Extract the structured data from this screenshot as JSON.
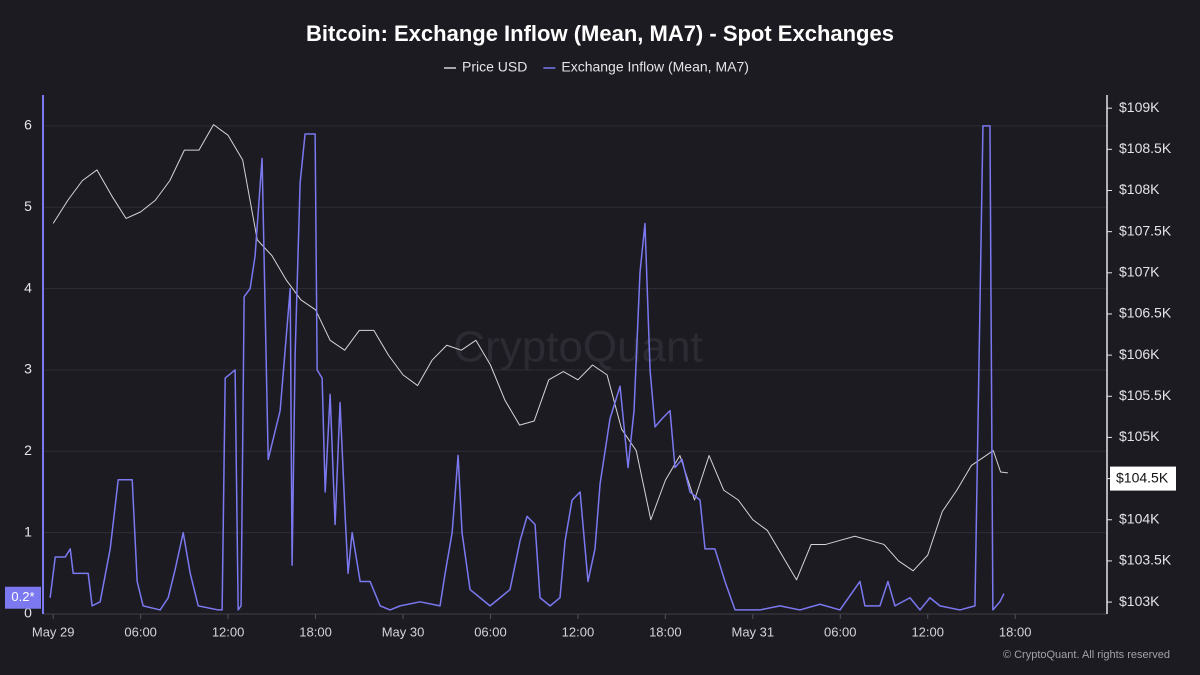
{
  "chart_data": {
    "type": "line",
    "title": "Bitcoin: Exchange Inflow (Mean, MA7) - Spot Exchanges",
    "watermark": "CryptoQuant",
    "footer": "© CryptoQuant. All rights reserved",
    "legend": "top",
    "grid": true,
    "xlim": [
      -0.7,
      72.3
    ],
    "xticks": [
      {
        "value": 0,
        "label": "May 29"
      },
      {
        "value": 6,
        "label": "06:00"
      },
      {
        "value": 12,
        "label": "12:00"
      },
      {
        "value": 18,
        "label": "18:00"
      },
      {
        "value": 24,
        "label": "May 30"
      },
      {
        "value": 30,
        "label": "06:00"
      },
      {
        "value": 36,
        "label": "12:00"
      },
      {
        "value": 42,
        "label": "18:00"
      },
      {
        "value": 48,
        "label": "May 31"
      },
      {
        "value": 54,
        "label": "06:00"
      },
      {
        "value": 60,
        "label": "12:00"
      },
      {
        "value": 66,
        "label": "18:00"
      }
    ],
    "ylim": [
      0,
      6.38
    ],
    "yticks": [
      0,
      1,
      2,
      3,
      4,
      5,
      6
    ],
    "y2lim": [
      102855,
      109160
    ],
    "y2ticks": [
      {
        "value": 103000,
        "label": "$103K"
      },
      {
        "value": 103500,
        "label": "$103.5K"
      },
      {
        "value": 104000,
        "label": "$104K"
      },
      {
        "value": 104500,
        "label": "$104.5K"
      },
      {
        "value": 105000,
        "label": "$105K"
      },
      {
        "value": 105500,
        "label": "$105.5K"
      },
      {
        "value": 106000,
        "label": "$106K"
      },
      {
        "value": 106500,
        "label": "$106.5K"
      },
      {
        "value": 107000,
        "label": "$107K"
      },
      {
        "value": 107500,
        "label": "$107.5K"
      },
      {
        "value": 108000,
        "label": "$108K"
      },
      {
        "value": 108500,
        "label": "$108.5K"
      },
      {
        "value": 109000,
        "label": "$109K"
      }
    ],
    "y_marker": {
      "value": 0.2,
      "label": "0.2*"
    },
    "y2_marker": {
      "value": 104500,
      "label": "$104.5K"
    },
    "series": [
      {
        "name": "Price USD",
        "color": "#d4d4d8",
        "axis": "y2",
        "x": [
          0,
          1,
          2,
          3,
          4,
          5,
          6,
          7,
          8,
          9,
          10,
          11,
          12,
          13,
          14,
          15,
          16,
          17,
          18,
          19,
          20,
          21,
          22,
          23,
          24,
          25,
          26,
          27,
          28,
          29,
          30,
          31,
          32,
          33,
          34,
          35,
          36,
          37,
          38,
          39,
          40,
          41,
          42,
          43,
          44,
          45,
          46,
          47,
          48,
          49,
          50,
          51,
          52,
          53,
          54,
          55,
          56,
          57,
          58,
          59,
          60,
          61,
          62,
          63,
          64,
          64.5,
          65,
          65.5
        ],
        "values": [
          107600,
          107880,
          108120,
          108250,
          107940,
          107660,
          107740,
          107880,
          108120,
          108490,
          108490,
          108800,
          108670,
          108370,
          107400,
          107210,
          106910,
          106670,
          106550,
          106180,
          106060,
          106300,
          106300,
          106000,
          105760,
          105630,
          105940,
          106120,
          106060,
          106180,
          105880,
          105450,
          105150,
          105200,
          105700,
          105800,
          105700,
          105880,
          105760,
          105100,
          104840,
          104000,
          104480,
          104780,
          104240,
          104780,
          104360,
          104240,
          104000,
          103870,
          103570,
          103270,
          103700,
          103700,
          103750,
          103800,
          103750,
          103700,
          103500,
          103380,
          103570,
          104100,
          104360,
          104660,
          104780,
          104840,
          104580,
          104570
        ]
      },
      {
        "name": "Exchange Inflow (Mean, MA7)",
        "color": "#7b78f0",
        "x": [
          -0.21,
          0.14,
          0.82,
          1.17,
          1.37,
          2.4,
          2.67,
          3.22,
          3.91,
          4.46,
          5.42,
          5.76,
          6.17,
          7.34,
          7.89,
          8.37,
          8.92,
          9.4,
          9.95,
          11.32,
          11.59,
          11.8,
          12.48,
          12.69,
          12.89,
          13.1,
          13.51,
          13.85,
          14.33,
          14.75,
          15.57,
          16.26,
          16.39,
          16.6,
          16.94,
          17.28,
          17.97,
          18.11,
          18.45,
          18.66,
          19.0,
          19.34,
          19.68,
          20.03,
          20.23,
          20.51,
          21.06,
          21.74,
          22.43,
          23.11,
          23.8,
          25.17,
          26.54,
          26.89,
          27.37,
          27.78,
          28.05,
          28.6,
          29.29,
          29.97,
          30.66,
          31.34,
          32.03,
          32.51,
          33.06,
          33.4,
          34.09,
          34.77,
          35.12,
          35.6,
          36.15,
          36.69,
          37.17,
          37.52,
          38.2,
          38.89,
          39.44,
          39.85,
          40.26,
          40.6,
          40.95,
          41.29,
          41.77,
          42.32,
          42.66,
          43.14,
          43.69,
          44.38,
          44.72,
          45.4,
          46.09,
          46.78,
          48.49,
          49.86,
          51.23,
          52.61,
          53.98,
          55.35,
          55.69,
          56.72,
          57.27,
          57.75,
          58.78,
          59.47,
          60.15,
          60.84,
          62.21,
          63.24,
          63.79,
          64.27,
          64.47,
          64.95,
          65.23
        ],
        "values": [
          0.2,
          0.7,
          0.7,
          0.8,
          0.5,
          0.5,
          0.1,
          0.15,
          0.8,
          1.65,
          1.65,
          0.4,
          0.1,
          0.05,
          0.2,
          0.55,
          1.0,
          0.5,
          0.1,
          0.05,
          0.05,
          2.9,
          3.0,
          0.05,
          0.1,
          3.9,
          4.0,
          4.4,
          5.6,
          1.9,
          2.5,
          4.0,
          0.6,
          3.2,
          5.3,
          5.9,
          5.9,
          3.0,
          2.9,
          1.5,
          2.7,
          1.1,
          2.6,
          1.2,
          0.5,
          1.0,
          0.4,
          0.4,
          0.1,
          0.05,
          0.1,
          0.15,
          0.1,
          0.5,
          1.0,
          1.95,
          1.0,
          0.3,
          0.2,
          0.1,
          0.2,
          0.3,
          0.9,
          1.2,
          1.1,
          0.2,
          0.1,
          0.2,
          0.9,
          1.4,
          1.5,
          0.4,
          0.8,
          1.6,
          2.4,
          2.8,
          1.8,
          2.5,
          4.2,
          4.8,
          3.0,
          2.3,
          2.4,
          2.5,
          1.8,
          1.9,
          1.5,
          1.4,
          0.8,
          0.8,
          0.4,
          0.05,
          0.05,
          0.1,
          0.05,
          0.12,
          0.05,
          0.4,
          0.1,
          0.1,
          0.4,
          0.1,
          0.2,
          0.05,
          0.2,
          0.1,
          0.05,
          0.1,
          6.0,
          6.0,
          0.05,
          0.15,
          0.25
        ]
      }
    ]
  }
}
